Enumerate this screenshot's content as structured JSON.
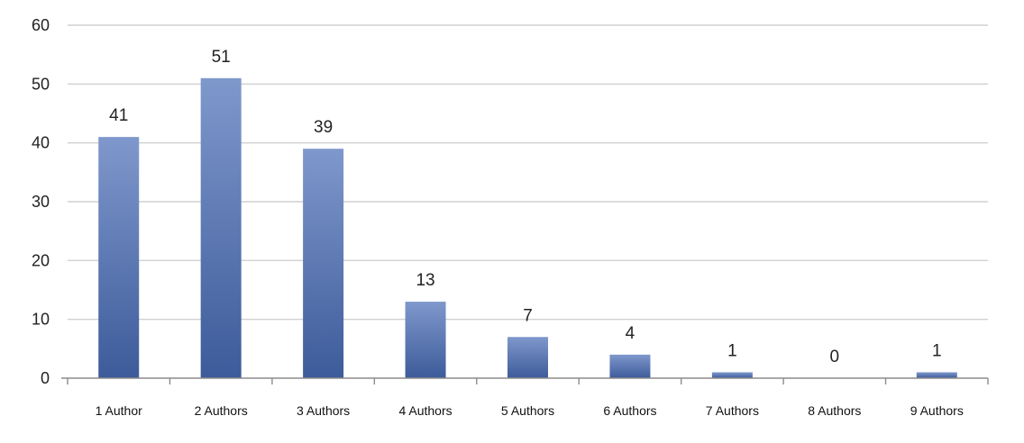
{
  "chart_data": {
    "type": "bar",
    "categories": [
      "1 Author",
      "2 Authors",
      "3 Authors",
      "4 Authors",
      "5 Authors",
      "6 Authors",
      "7 Authors",
      "8 Authors",
      "9 Authors"
    ],
    "series": [
      {
        "values": [
          41,
          51,
          39,
          13,
          7,
          4,
          1,
          0,
          1
        ]
      }
    ],
    "data_labels": [
      "41",
      "51",
      "39",
      "13",
      "7",
      "4",
      "1",
      "0",
      "1"
    ],
    "yticks": [
      "0",
      "10",
      "20",
      "30",
      "40",
      "50",
      "60"
    ],
    "ylim": [
      0,
      60
    ],
    "grid": true,
    "legend": "none",
    "colors": {
      "bar_top": "#7f98cc",
      "bar_bottom": "#3d5b9a",
      "grid": "#d0d0d0",
      "axis": "#8c8c8c"
    }
  }
}
